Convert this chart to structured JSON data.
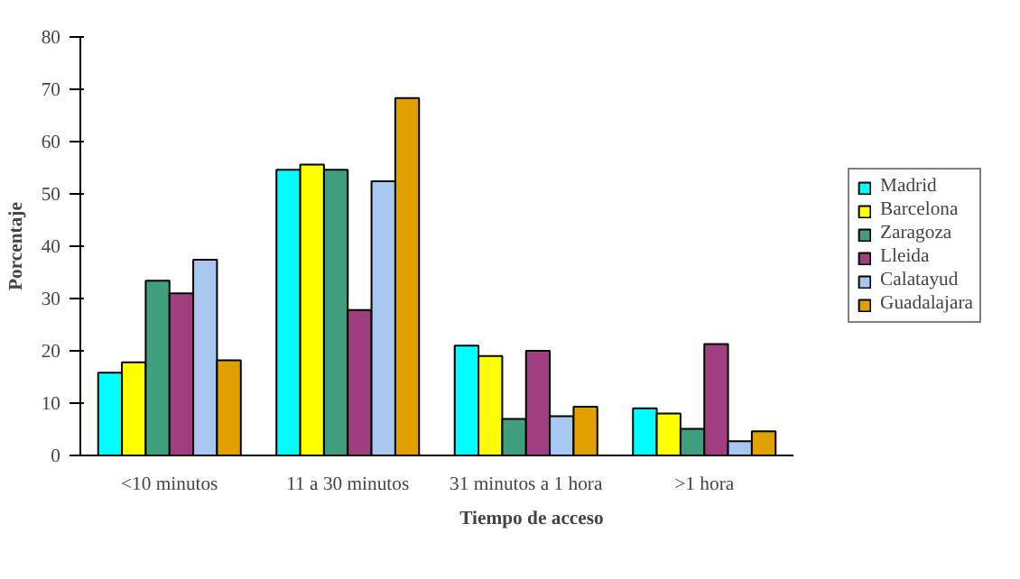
{
  "chart_data": {
    "type": "bar",
    "xlabel": "Tiempo de acceso",
    "ylabel": "Porcentaje",
    "categories": [
      "<10 minutos",
      "11 a 30 minutos",
      "31 minutos a 1 hora",
      ">1 hora"
    ],
    "series": [
      {
        "name": "Madrid",
        "color": "#00ffff",
        "values": [
          15.8,
          54.6,
          21,
          9
        ]
      },
      {
        "name": "Barcelona",
        "color": "#ffff00",
        "values": [
          17.8,
          55.6,
          19,
          8
        ]
      },
      {
        "name": "Zaragoza",
        "color": "#3f9f7f",
        "values": [
          33.4,
          54.6,
          7,
          5.1
        ]
      },
      {
        "name": "Lleida",
        "color": "#9f3f7f",
        "values": [
          31,
          27.8,
          20,
          21.3
        ]
      },
      {
        "name": "Calatayud",
        "color": "#a6c8f0",
        "values": [
          37.4,
          52.4,
          7.5,
          2.7
        ]
      },
      {
        "name": "Guadalajara",
        "color": "#e0a000",
        "values": [
          18.2,
          68.3,
          9.3,
          4.6
        ]
      }
    ],
    "ylim": [
      0,
      80
    ],
    "yticks": [
      0,
      10,
      20,
      30,
      40,
      50,
      60,
      70,
      80
    ],
    "grid": false,
    "legend": "right"
  }
}
